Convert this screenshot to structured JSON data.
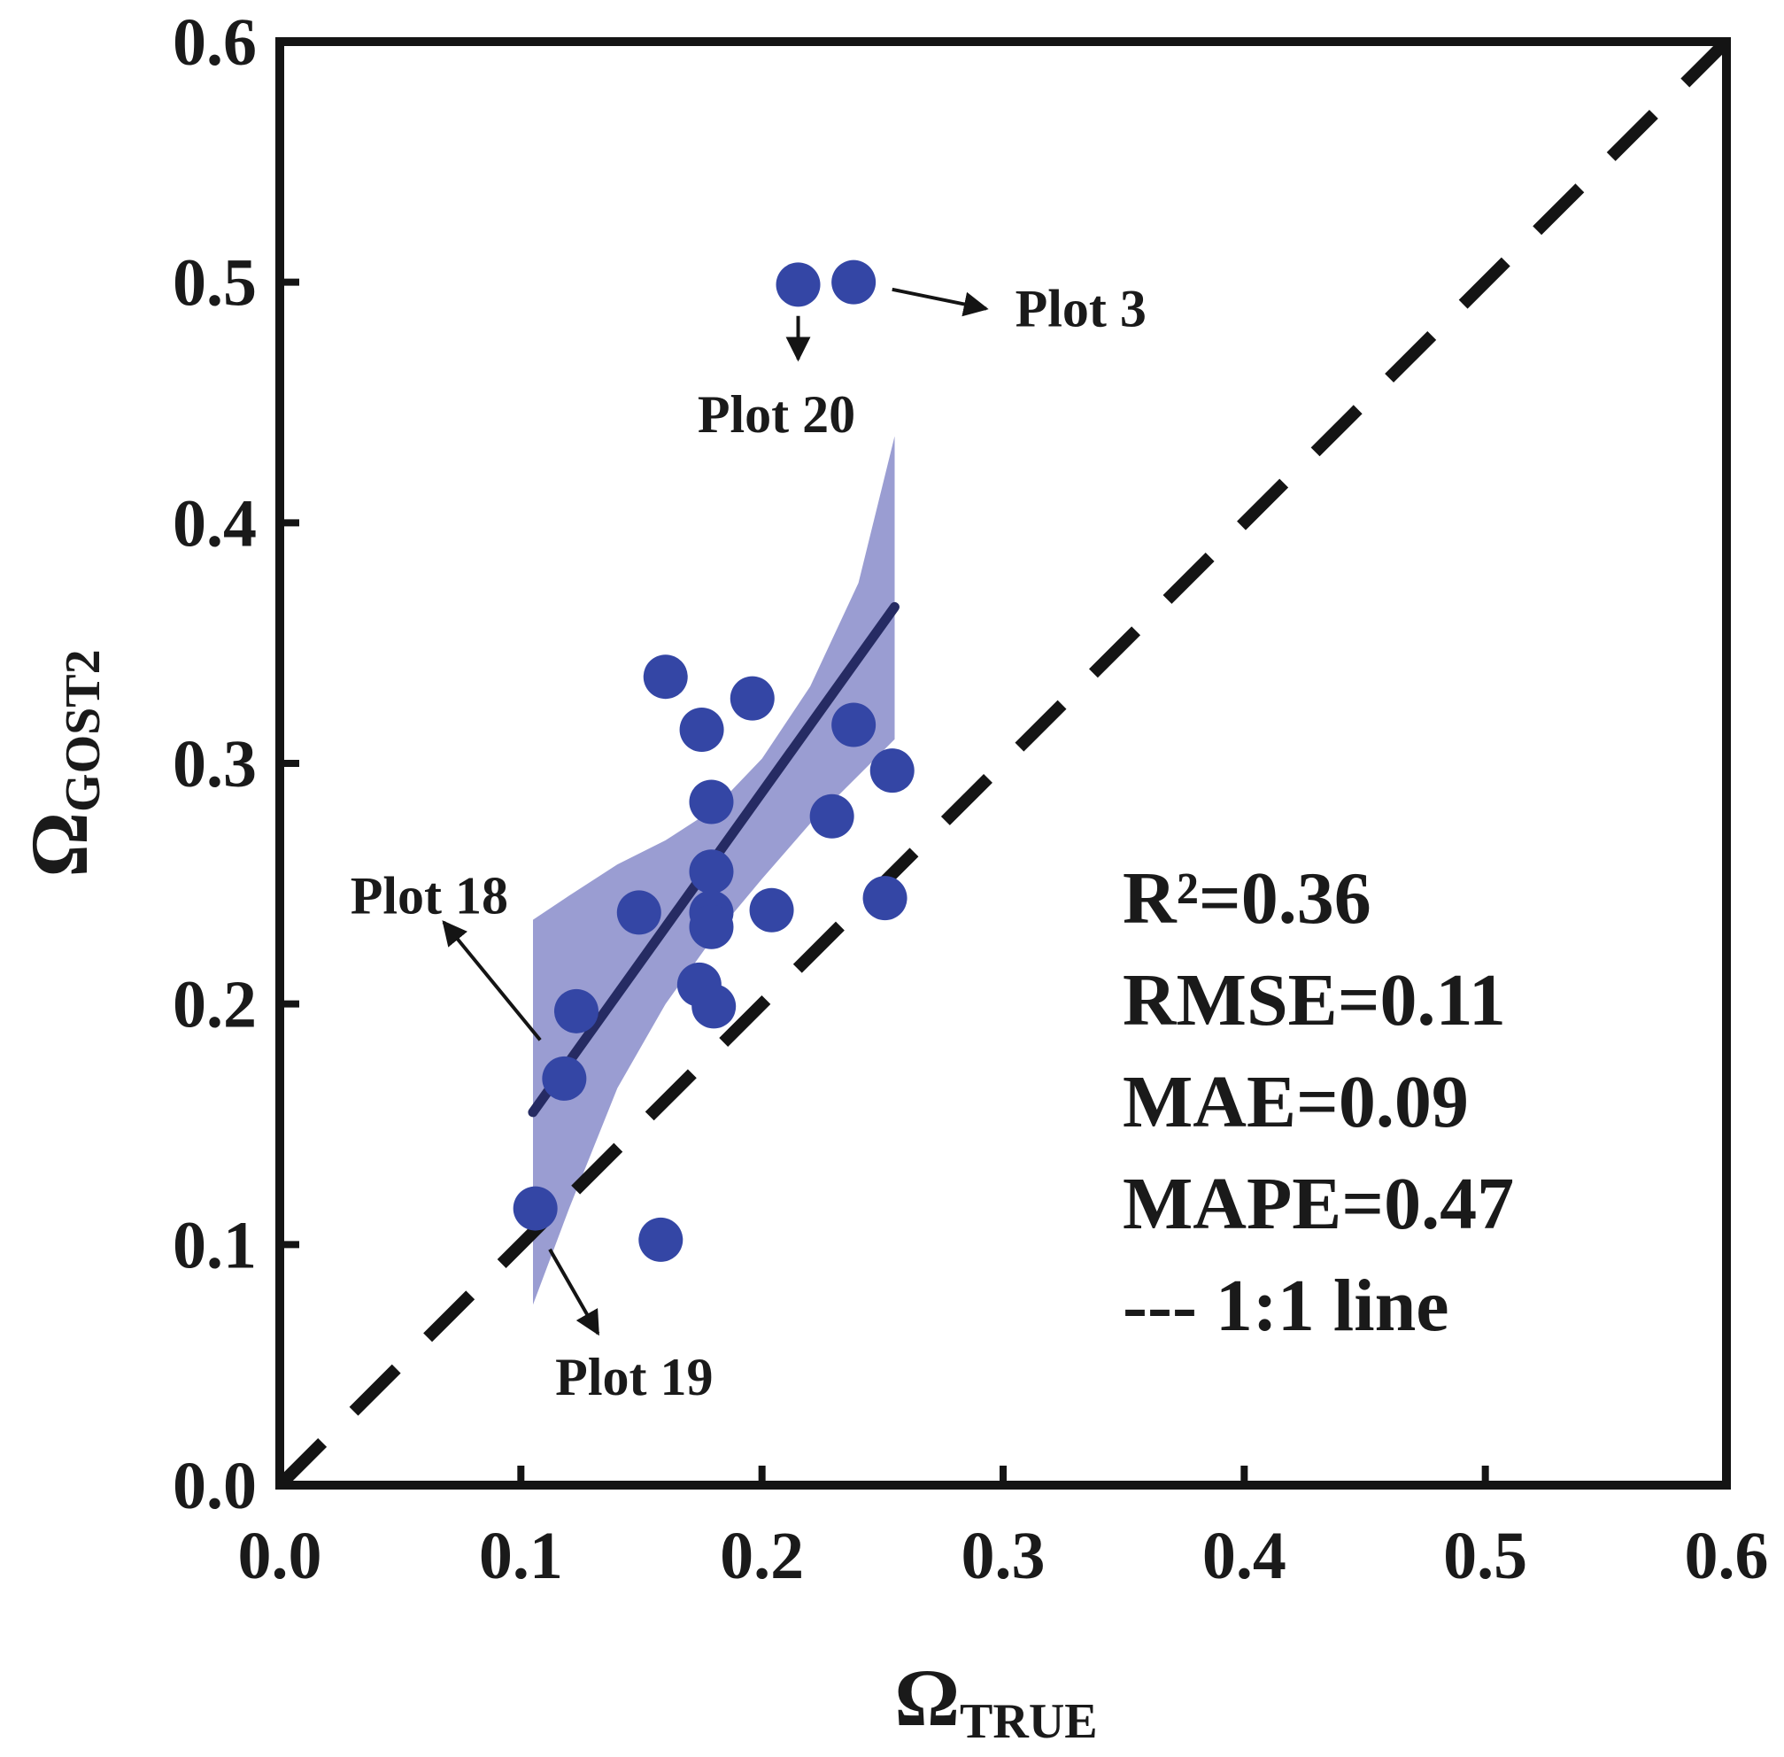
{
  "chart_data": {
    "type": "scatter",
    "title": "",
    "xlabel": "Ω",
    "xlabel_sub": "TRUE",
    "ylabel": "Ω",
    "ylabel_sub": "GOST2",
    "xlim": [
      0.0,
      0.6
    ],
    "ylim": [
      0.0,
      0.6
    ],
    "xticks": [
      "0.0",
      "0.1",
      "0.2",
      "0.3",
      "0.4",
      "0.5",
      "0.6"
    ],
    "yticks": [
      "0.0",
      "0.1",
      "0.2",
      "0.3",
      "0.4",
      "0.5",
      "0.6"
    ],
    "grid": false,
    "points": [
      {
        "x": 0.215,
        "y": 0.499
      },
      {
        "x": 0.238,
        "y": 0.5
      },
      {
        "x": 0.16,
        "y": 0.336
      },
      {
        "x": 0.196,
        "y": 0.327
      },
      {
        "x": 0.175,
        "y": 0.314
      },
      {
        "x": 0.238,
        "y": 0.316
      },
      {
        "x": 0.254,
        "y": 0.297
      },
      {
        "x": 0.179,
        "y": 0.284
      },
      {
        "x": 0.229,
        "y": 0.278
      },
      {
        "x": 0.179,
        "y": 0.255
      },
      {
        "x": 0.149,
        "y": 0.238
      },
      {
        "x": 0.204,
        "y": 0.239
      },
      {
        "x": 0.179,
        "y": 0.238
      },
      {
        "x": 0.179,
        "y": 0.232
      },
      {
        "x": 0.251,
        "y": 0.244
      },
      {
        "x": 0.174,
        "y": 0.208
      },
      {
        "x": 0.18,
        "y": 0.199
      },
      {
        "x": 0.123,
        "y": 0.197
      },
      {
        "x": 0.118,
        "y": 0.169
      },
      {
        "x": 0.106,
        "y": 0.115
      },
      {
        "x": 0.158,
        "y": 0.102
      }
    ],
    "regression": {
      "x": [
        0.105,
        0.255
      ],
      "y": [
        0.155,
        0.365
      ]
    },
    "confidence_band": {
      "upper": [
        [
          0.105,
          0.235
        ],
        [
          0.12,
          0.245
        ],
        [
          0.14,
          0.258
        ],
        [
          0.16,
          0.268
        ],
        [
          0.18,
          0.281
        ],
        [
          0.2,
          0.302
        ],
        [
          0.22,
          0.332
        ],
        [
          0.24,
          0.375
        ],
        [
          0.255,
          0.436
        ]
      ],
      "lower": [
        [
          0.255,
          0.31
        ],
        [
          0.24,
          0.295
        ],
        [
          0.22,
          0.275
        ],
        [
          0.2,
          0.252
        ],
        [
          0.18,
          0.228
        ],
        [
          0.16,
          0.2
        ],
        [
          0.14,
          0.165
        ],
        [
          0.12,
          0.115
        ],
        [
          0.105,
          0.075
        ]
      ]
    },
    "reference_line": {
      "label": "--- 1:1 line",
      "x": [
        0.0,
        0.6
      ],
      "y": [
        0.0,
        0.6
      ]
    },
    "annotations": [
      {
        "label": "Plot 3",
        "point": [
          0.238,
          0.5
        ],
        "arrow_from": [
          0.254,
          0.497
        ],
        "arrow_to": [
          0.293,
          0.489
        ],
        "text_at": [
          0.305,
          0.489
        ],
        "anchor": "start"
      },
      {
        "label": "Plot 20",
        "point": [
          0.215,
          0.499
        ],
        "arrow_from": [
          0.215,
          0.486
        ],
        "arrow_to": [
          0.215,
          0.468
        ],
        "text_at": [
          0.206,
          0.445
        ],
        "anchor": "middle"
      },
      {
        "label": "Plot 18",
        "point": [
          0.118,
          0.169
        ],
        "arrow_from": [
          0.108,
          0.185
        ],
        "arrow_to": [
          0.068,
          0.234
        ],
        "text_at": [
          0.062,
          0.245
        ],
        "anchor": "middle"
      },
      {
        "label": "Plot 19",
        "point": [
          0.106,
          0.115
        ],
        "arrow_from": [
          0.112,
          0.098
        ],
        "arrow_to": [
          0.132,
          0.063
        ],
        "text_at": [
          0.147,
          0.045
        ],
        "anchor": "middle"
      }
    ],
    "stats": [
      "R²=0.36",
      "RMSE=0.11",
      "MAE=0.09",
      "MAPE=0.47",
      "--- 1:1 line"
    ],
    "colors": {
      "point": "#3446a5",
      "band": "#9a9dd2",
      "regression": "#262b63",
      "reference": "#141414",
      "axis": "#141414"
    }
  }
}
